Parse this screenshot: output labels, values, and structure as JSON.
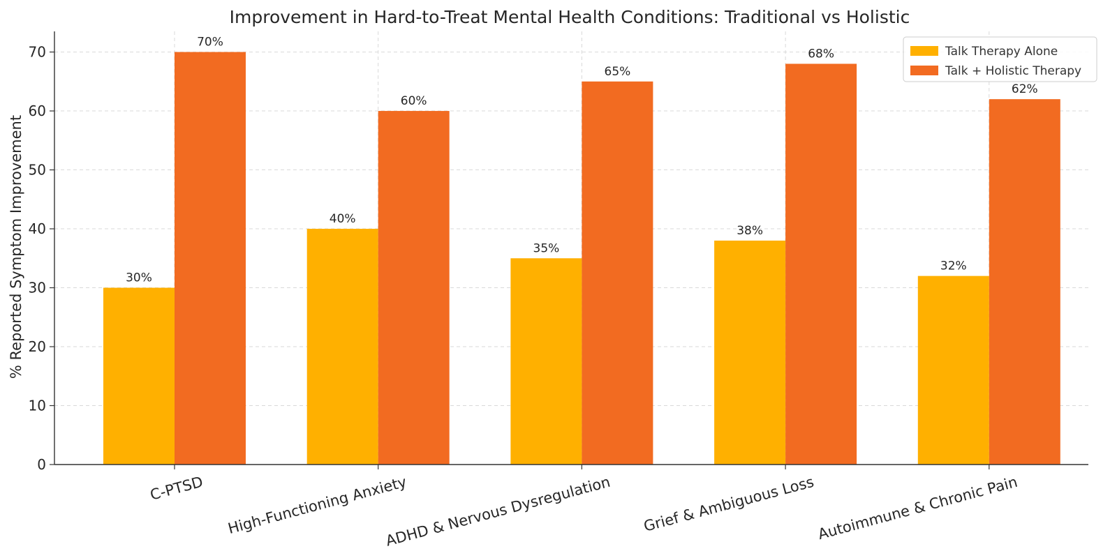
{
  "chart_data": {
    "type": "bar",
    "title": "Improvement in Hard-to-Treat Mental Health Conditions: Traditional vs Holistic",
    "xlabel": "",
    "ylabel": "% Reported Symptom Improvement",
    "categories": [
      "C-PTSD",
      "High-Functioning Anxiety",
      "ADHD & Nervous Dysregulation",
      "Grief & Ambiguous Loss",
      "Autoimmune & Chronic Pain"
    ],
    "series": [
      {
        "name": "Talk Therapy Alone",
        "color": "#FFB000",
        "values": [
          30,
          40,
          35,
          38,
          32
        ],
        "labels": [
          "30%",
          "40%",
          "35%",
          "38%",
          "32%"
        ]
      },
      {
        "name": "Talk + Holistic Therapy",
        "color": "#F26B21",
        "values": [
          70,
          60,
          65,
          68,
          62
        ],
        "labels": [
          "70%",
          "60%",
          "65%",
          "68%",
          "62%"
        ]
      }
    ],
    "ylim": [
      0,
      73.5
    ],
    "yticks": [
      0,
      10,
      20,
      30,
      40,
      50,
      60,
      70
    ],
    "grid": true,
    "legend_position": "top-right"
  }
}
